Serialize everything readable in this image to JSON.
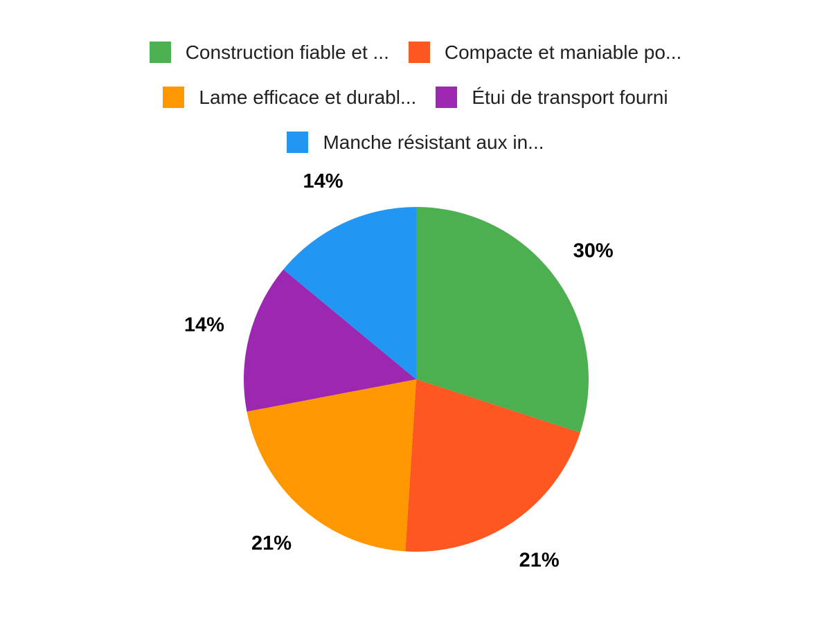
{
  "chart_data": {
    "type": "pie",
    "title": "",
    "legend_position": "top",
    "direction": "clockwise",
    "start_angle_deg": 0,
    "unit": "%",
    "categories": [
      "Construction fiable et ...",
      "Compacte et maniable po...",
      "Lame efficace et durabl...",
      "Étui de transport fourni",
      "Manche résistant aux in..."
    ],
    "values": [
      30,
      21,
      21,
      14,
      14
    ],
    "slices": [
      {
        "label": "Construction fiable et ...",
        "value": 30,
        "display_value": "30%",
        "color": "#4CAF50"
      },
      {
        "label": "Compacte et maniable po...",
        "value": 21,
        "display_value": "21%",
        "color": "#FF5722"
      },
      {
        "label": "Lame efficace et durabl...",
        "value": 21,
        "display_value": "21%",
        "color": "#FF9800"
      },
      {
        "label": "Étui de transport fourni",
        "value": 14,
        "display_value": "14%",
        "color": "#9C27B0"
      },
      {
        "label": "Manche résistant aux in...",
        "value": 14,
        "display_value": "14%",
        "color": "#2196F3"
      }
    ],
    "legend_rows": [
      [
        0,
        1
      ],
      [
        2,
        3
      ],
      [
        4
      ]
    ],
    "label_color": "#000000",
    "legend_text_color": "#212121",
    "background_color": "#ffffff"
  }
}
